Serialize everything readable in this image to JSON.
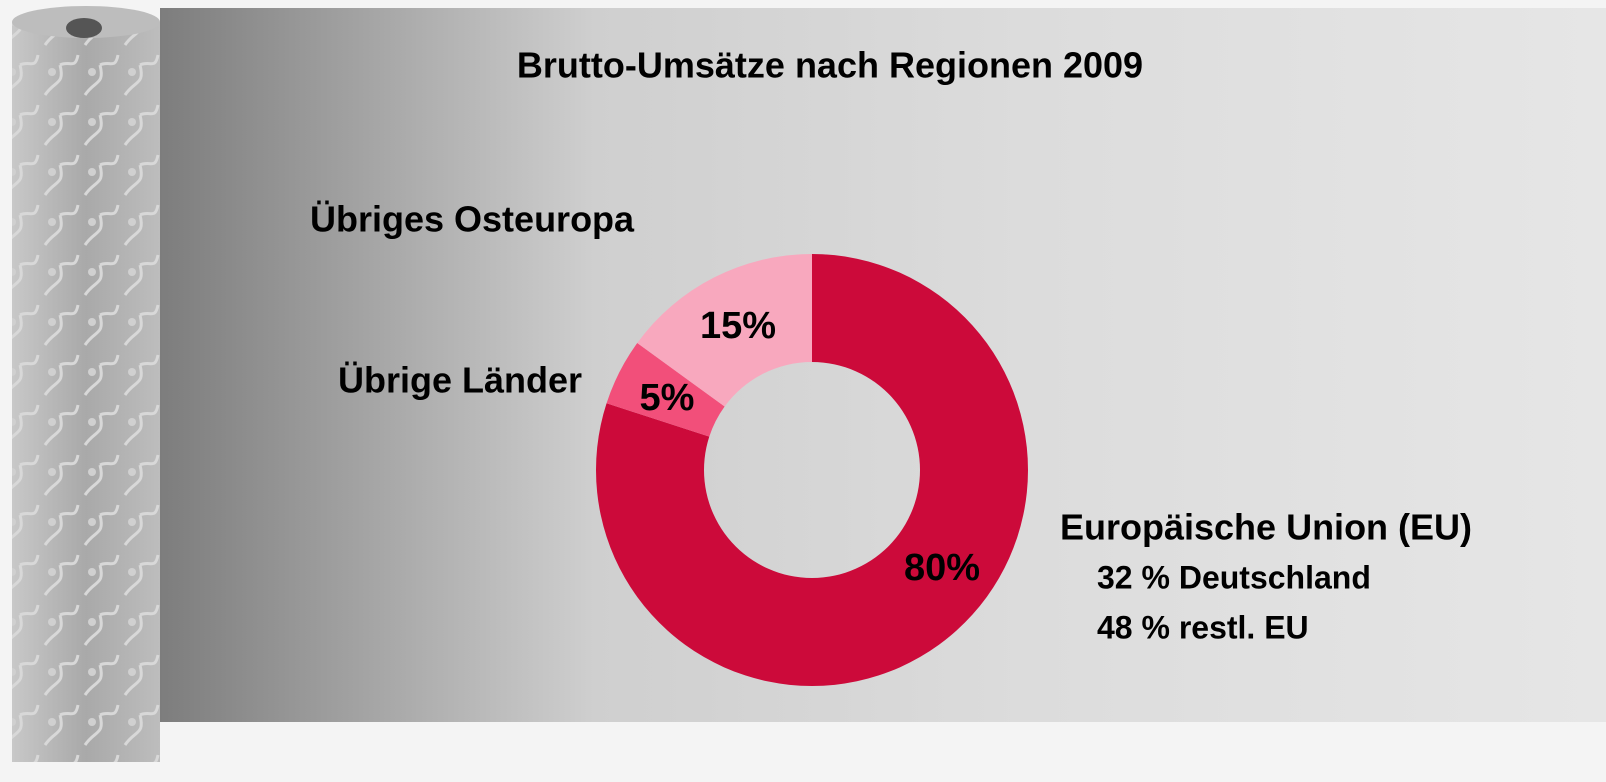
{
  "chart_data": {
    "type": "pie",
    "title": "Brutto-Umsätze nach Regionen 2009",
    "categories": [
      "Europäische Union (EU)",
      "Übrige Länder",
      "Übriges Osteuropa"
    ],
    "values": [
      80,
      5,
      15
    ],
    "value_labels": [
      "80%",
      "5%",
      "15%"
    ],
    "colors": [
      "#cc0a3a",
      "#f24f7a",
      "#f8a8be"
    ],
    "donut": true,
    "annotations": [
      "32 % Deutschland",
      "48 % restl. EU"
    ]
  }
}
